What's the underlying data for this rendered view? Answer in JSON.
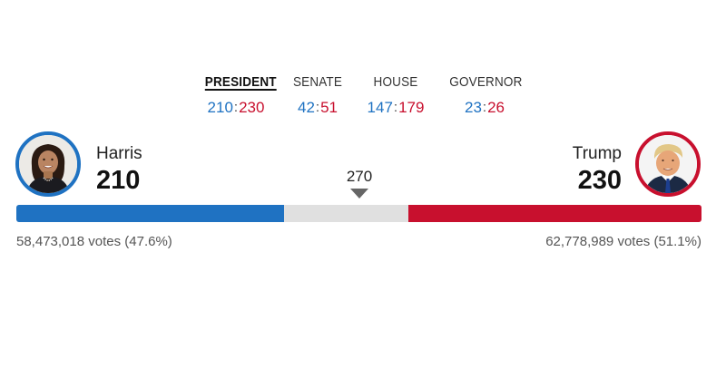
{
  "races": [
    {
      "label": "PRESIDENT",
      "dem": "210",
      "rep": "230",
      "active": true
    },
    {
      "label": "SENATE",
      "dem": "42",
      "rep": "51",
      "active": false
    },
    {
      "label": "HOUSE",
      "dem": "147",
      "rep": "179",
      "active": false
    },
    {
      "label": "GOVERNOR",
      "dem": "23",
      "rep": "26",
      "active": false
    }
  ],
  "separator": ":",
  "threshold": {
    "value": 270,
    "label": "270"
  },
  "total_electoral_votes": 538,
  "candidates": {
    "harris": {
      "name": "Harris",
      "electoral_votes": "210",
      "popular_votes": "58,473,018 votes (47.6%)",
      "color": "#1f72c2"
    },
    "trump": {
      "name": "Trump",
      "electoral_votes": "230",
      "popular_votes": "62,778,989 votes (51.1%)",
      "color": "#c8102e"
    }
  },
  "colors": {
    "dem": "#1f72c2",
    "rep": "#c8102e",
    "uncalled": "#e0e0e0"
  },
  "icons": {
    "threshold_marker": "triangle-down-icon",
    "harris_photo": "harris-portrait",
    "trump_photo": "trump-portrait"
  }
}
